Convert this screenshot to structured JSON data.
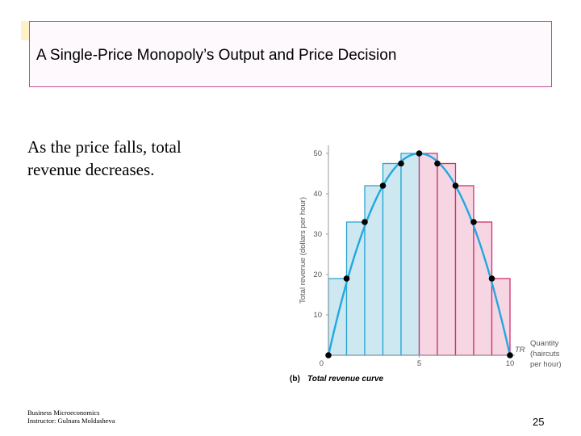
{
  "slide": {
    "title": "A Single-Price Monopoly’s Output and Price Decision",
    "body_text": "As the price falls, total revenue decreases.",
    "footer": {
      "line1": "Business Microeconomics",
      "line2": "Instructor: Gulnara Moldasheva"
    },
    "page_number": "25"
  },
  "chart_data": {
    "type": "bar",
    "caption_label": "(b)",
    "caption_text": "Total revenue curve",
    "ylabel": "Total revenue (dollars per hour)",
    "xlabel": [
      "Quantity",
      "(haircuts",
      "per hour)"
    ],
    "curve_label": "TR",
    "xlim": [
      0,
      10
    ],
    "ylim": [
      0,
      52
    ],
    "x_ticks": [
      "0",
      "5",
      "10"
    ],
    "y_ticks": [
      "10",
      "20",
      "30",
      "40",
      "50"
    ],
    "grid": false,
    "bars": [
      {
        "x": 0,
        "value": 19,
        "side": "rising"
      },
      {
        "x": 1,
        "value": 33,
        "side": "rising"
      },
      {
        "x": 2,
        "value": 42,
        "side": "rising"
      },
      {
        "x": 3,
        "value": 47.5,
        "side": "rising"
      },
      {
        "x": 4,
        "value": 50,
        "side": "rising"
      },
      {
        "x": 5,
        "value": 50,
        "side": "falling"
      },
      {
        "x": 6,
        "value": 47.5,
        "side": "falling"
      },
      {
        "x": 7,
        "value": 42,
        "side": "falling"
      },
      {
        "x": 8,
        "value": 33,
        "side": "falling"
      },
      {
        "x": 9,
        "value": 19,
        "side": "falling"
      }
    ],
    "points": [
      {
        "x": 0,
        "y": 0
      },
      {
        "x": 1,
        "y": 19
      },
      {
        "x": 2,
        "y": 33
      },
      {
        "x": 3,
        "y": 42
      },
      {
        "x": 4,
        "y": 47.5
      },
      {
        "x": 5,
        "y": 50
      },
      {
        "x": 6,
        "y": 47.5
      },
      {
        "x": 7,
        "y": 42
      },
      {
        "x": 8,
        "y": 33
      },
      {
        "x": 9,
        "y": 19
      },
      {
        "x": 10,
        "y": 0
      }
    ],
    "colors": {
      "rising_fill": "#cde8f1",
      "rising_stroke": "#2aa6d2",
      "falling_fill": "#f7d6e4",
      "falling_stroke": "#d1306f",
      "curve": "#22a7e0",
      "point": "#000000"
    }
  }
}
